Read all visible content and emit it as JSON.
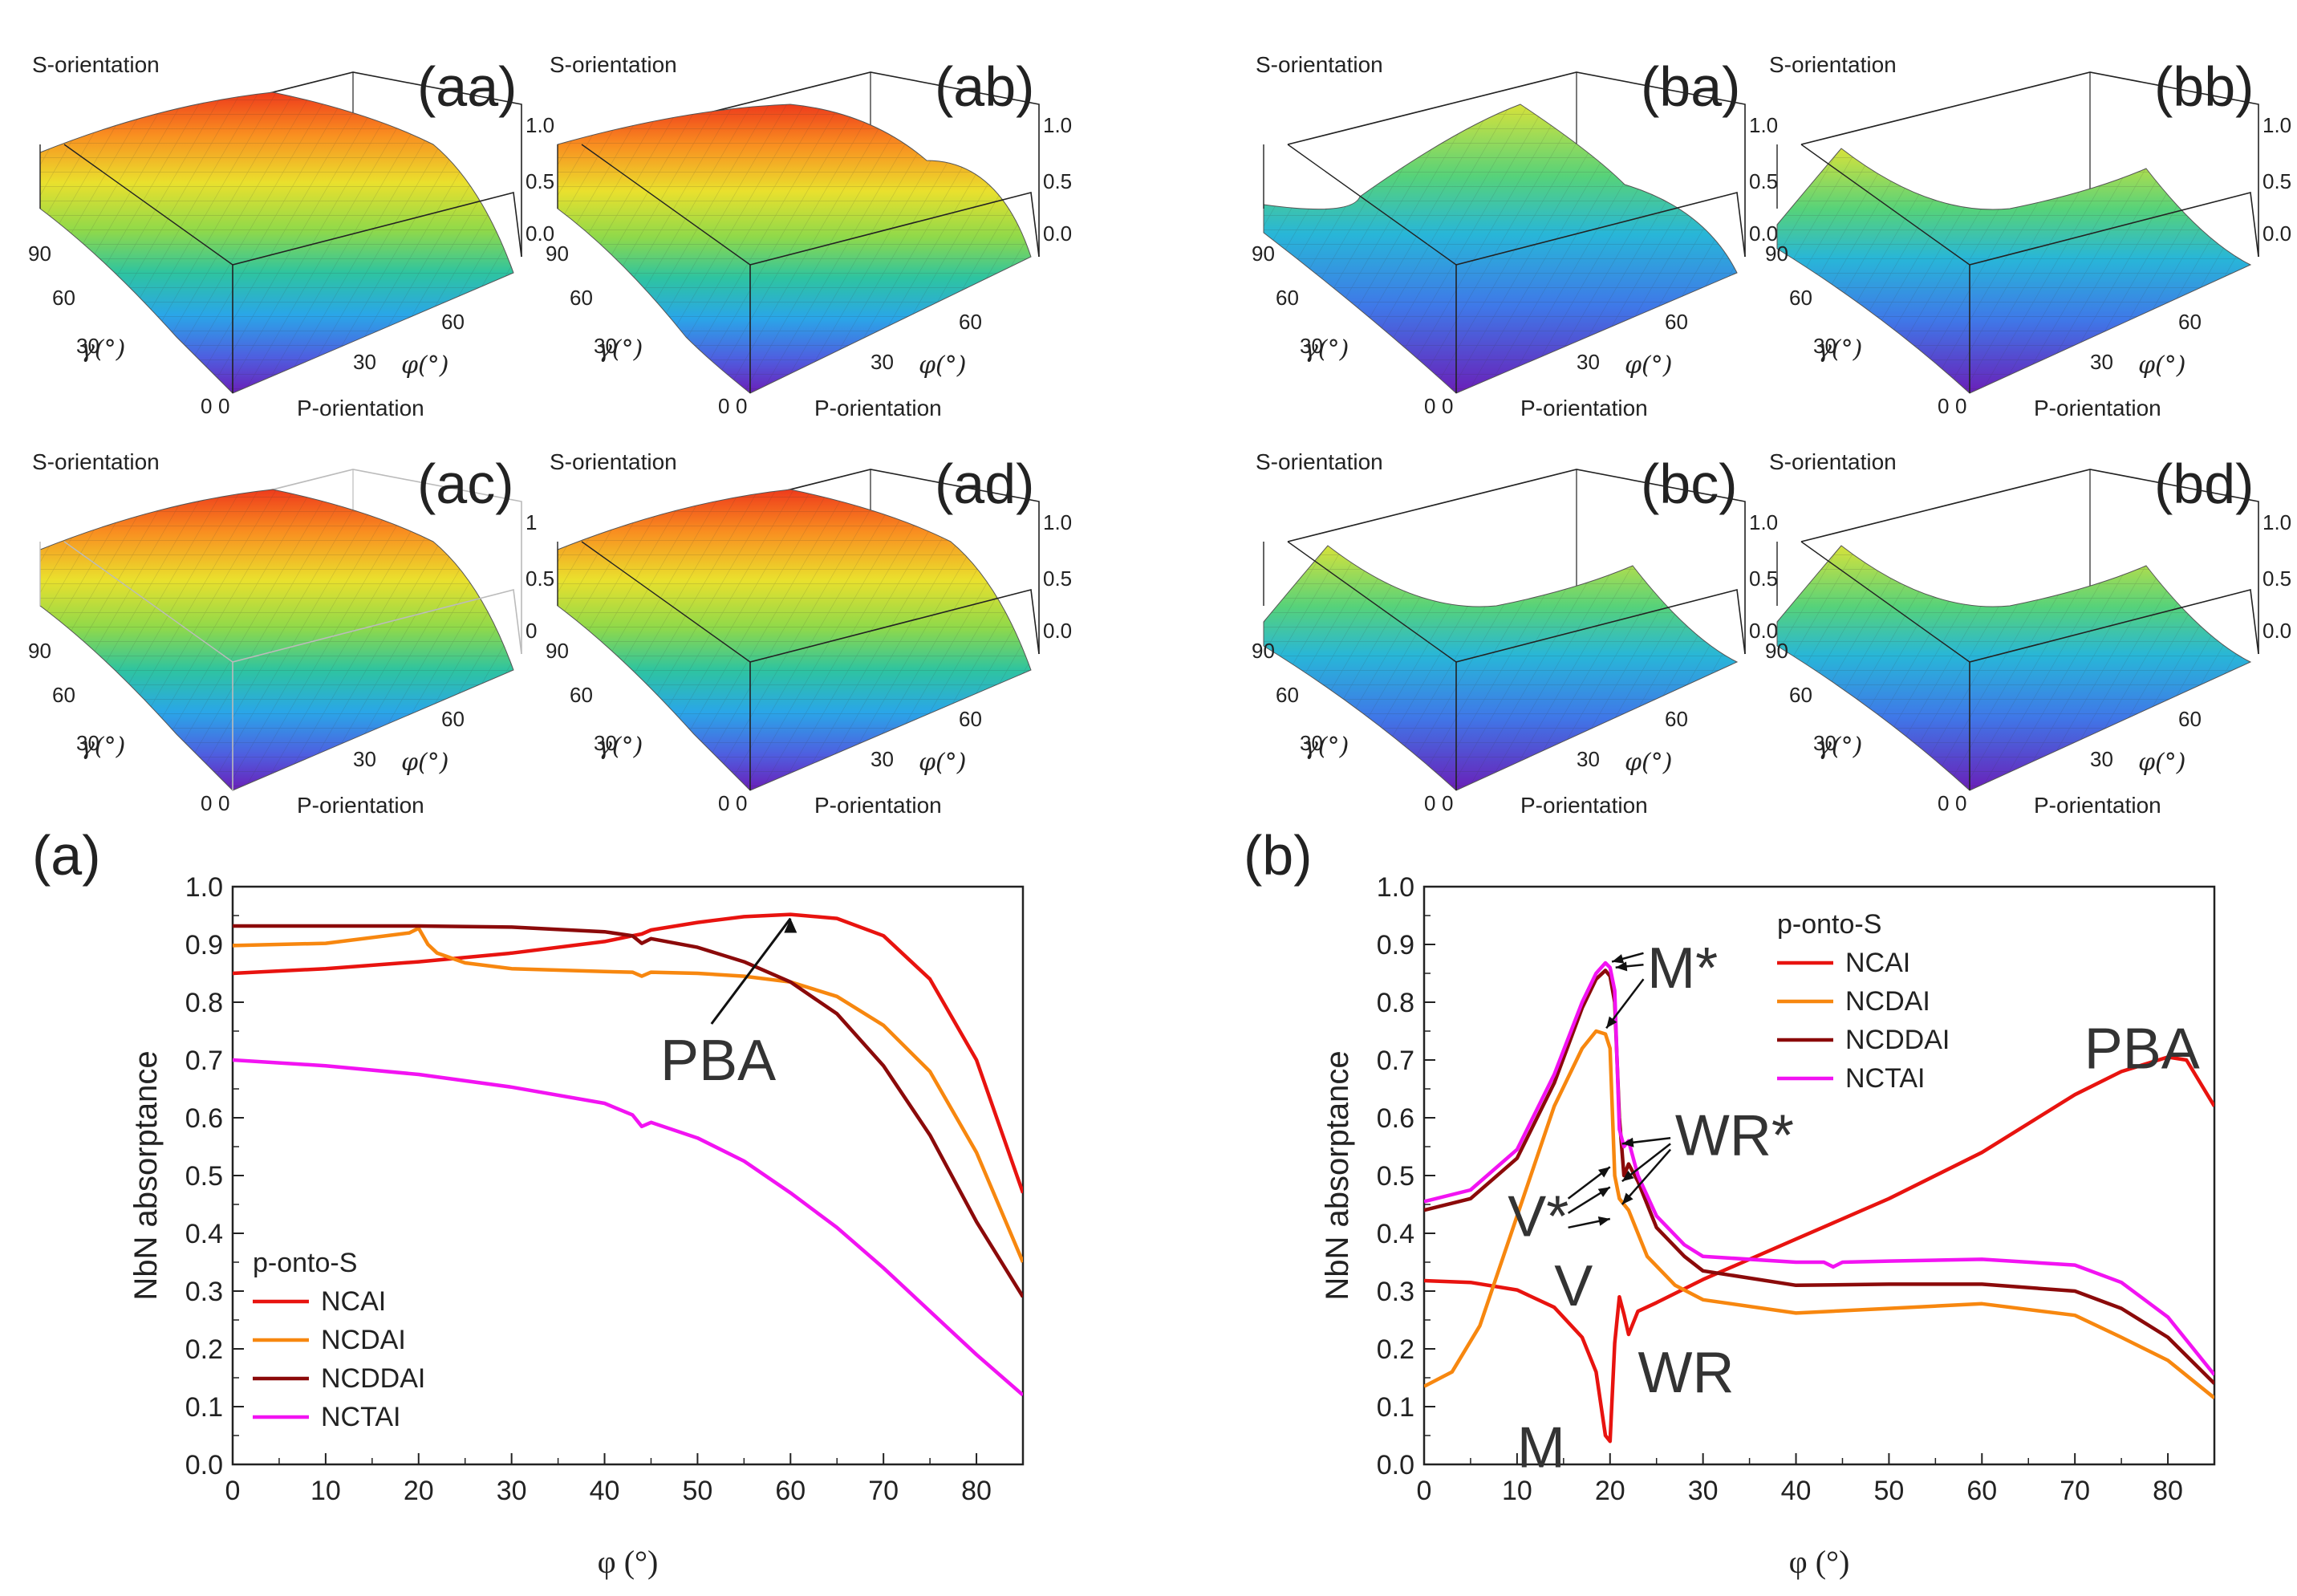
{
  "panels3d": [
    {
      "label": "(aa)",
      "kind": "smooth",
      "box": "dark",
      "ticks_z": [
        "1.0",
        "0.5",
        "0.0"
      ]
    },
    {
      "label": "(ab)",
      "kind": "bump",
      "box": "dark",
      "ticks_z": [
        "1.0",
        "0.5",
        "0.0"
      ]
    },
    {
      "label": "(ba)",
      "kind": "valley",
      "box": "dark",
      "ticks_z": [
        "1.0",
        "0.5",
        "0.0"
      ]
    },
    {
      "label": "(bb)",
      "kind": "ridge",
      "box": "dark",
      "ticks_z": [
        "1.0",
        "0.5",
        "0.0"
      ]
    },
    {
      "label": "(ac)",
      "kind": "smooth",
      "box": "light",
      "ticks_z": [
        "1",
        "0.5",
        "0"
      ]
    },
    {
      "label": "(ad)",
      "kind": "smooth",
      "box": "dark",
      "ticks_z": [
        "1.0",
        "0.5",
        "0.0"
      ]
    },
    {
      "label": "(bc)",
      "kind": "ridge",
      "box": "dark",
      "ticks_z": [
        "1.0",
        "0.5",
        "0.0"
      ]
    },
    {
      "label": "(bd)",
      "kind": "ridge",
      "box": "dark",
      "ticks_z": [
        "1.0",
        "0.5",
        "0.0"
      ]
    }
  ],
  "axes3d": {
    "s_orientation": "S-orientation",
    "p_orientation": "P-orientation",
    "gamma_label": "γ(°)",
    "phi_label": "φ(°)",
    "gamma_ticks": [
      "90",
      "60",
      "30",
      "0"
    ],
    "phi_ticks": [
      "0",
      "30",
      "60"
    ]
  },
  "chart_data": [
    {
      "type": "line",
      "panel_label": "(a)",
      "xlabel": "φ (°)",
      "ylabel": "NbN absorptance",
      "xlim": [
        0,
        85
      ],
      "ylim": [
        0,
        1.0
      ],
      "xticks": [
        0,
        10,
        20,
        30,
        40,
        50,
        60,
        70,
        80
      ],
      "yticks": [
        0.0,
        0.1,
        0.2,
        0.3,
        0.4,
        0.5,
        0.6,
        0.7,
        0.8,
        0.9,
        1.0
      ],
      "legend_title": "p-onto-S",
      "series": [
        {
          "name": "NCAI",
          "color": "#e8130f",
          "x": [
            0,
            10,
            20,
            30,
            40,
            43,
            44,
            45,
            50,
            55,
            60,
            65,
            70,
            75,
            80,
            85
          ],
          "y": [
            0.85,
            0.858,
            0.87,
            0.885,
            0.905,
            0.915,
            0.918,
            0.925,
            0.938,
            0.948,
            0.952,
            0.945,
            0.915,
            0.84,
            0.7,
            0.47
          ]
        },
        {
          "name": "NCDAI",
          "color": "#f7870f",
          "x": [
            0,
            10,
            19,
            20,
            21,
            22,
            25,
            30,
            40,
            43,
            44,
            45,
            50,
            55,
            60,
            65,
            70,
            75,
            80,
            85
          ],
          "y": [
            0.898,
            0.902,
            0.92,
            0.928,
            0.9,
            0.885,
            0.868,
            0.858,
            0.853,
            0.852,
            0.845,
            0.852,
            0.85,
            0.845,
            0.835,
            0.81,
            0.76,
            0.68,
            0.54,
            0.35
          ]
        },
        {
          "name": "NCDDAI",
          "color": "#8b0a0a",
          "x": [
            0,
            10,
            20,
            30,
            40,
            43,
            44,
            45,
            50,
            55,
            60,
            65,
            70,
            75,
            80,
            85
          ],
          "y": [
            0.932,
            0.932,
            0.932,
            0.93,
            0.922,
            0.915,
            0.902,
            0.91,
            0.895,
            0.87,
            0.835,
            0.78,
            0.69,
            0.57,
            0.42,
            0.29
          ]
        },
        {
          "name": "NCTAI",
          "color": "#f213f2",
          "x": [
            0,
            10,
            20,
            30,
            40,
            43,
            44,
            45,
            50,
            55,
            60,
            65,
            70,
            75,
            80,
            85
          ],
          "y": [
            0.7,
            0.69,
            0.675,
            0.653,
            0.625,
            0.605,
            0.585,
            0.592,
            0.565,
            0.525,
            0.47,
            0.41,
            0.34,
            0.265,
            0.19,
            0.12
          ]
        }
      ],
      "annotations": [
        {
          "text": "PBA",
          "x": 46,
          "y": 0.7,
          "arrow_to": [
            60,
            0.952
          ]
        }
      ]
    },
    {
      "type": "line",
      "panel_label": "(b)",
      "xlabel": "φ (°)",
      "ylabel": "NbN absorptance",
      "xlim": [
        0,
        85
      ],
      "ylim": [
        0,
        1.0
      ],
      "xticks": [
        0,
        10,
        20,
        30,
        40,
        50,
        60,
        70,
        80
      ],
      "yticks": [
        0.0,
        0.1,
        0.2,
        0.3,
        0.4,
        0.5,
        0.6,
        0.7,
        0.8,
        0.9,
        1.0
      ],
      "legend_title": "p-onto-S",
      "series": [
        {
          "name": "NCAI",
          "color": "#e8130f",
          "x": [
            0,
            5,
            10,
            14,
            17,
            18.5,
            19.5,
            20,
            20.5,
            21,
            21.5,
            22,
            23,
            25,
            30,
            40,
            50,
            60,
            70,
            75,
            80,
            82,
            85
          ],
          "y": [
            0.318,
            0.315,
            0.302,
            0.272,
            0.22,
            0.16,
            0.05,
            0.04,
            0.21,
            0.29,
            0.26,
            0.225,
            0.265,
            0.28,
            0.32,
            0.39,
            0.46,
            0.54,
            0.64,
            0.68,
            0.705,
            0.7,
            0.62
          ]
        },
        {
          "name": "NCDAI",
          "color": "#f7870f",
          "x": [
            0,
            3,
            6,
            10,
            14,
            17,
            18.5,
            19.5,
            20,
            20.5,
            21,
            21.5,
            22,
            24,
            27,
            30,
            40,
            50,
            60,
            70,
            75,
            80,
            85
          ],
          "y": [
            0.135,
            0.16,
            0.24,
            0.43,
            0.62,
            0.72,
            0.75,
            0.745,
            0.72,
            0.5,
            0.46,
            0.45,
            0.44,
            0.36,
            0.31,
            0.285,
            0.262,
            0.27,
            0.278,
            0.258,
            0.22,
            0.18,
            0.115
          ]
        },
        {
          "name": "NCDDAI",
          "color": "#8b0a0a",
          "x": [
            0,
            5,
            10,
            14,
            17,
            18.5,
            19.5,
            20,
            20.5,
            21,
            21.5,
            22,
            23,
            25,
            28,
            30,
            40,
            50,
            60,
            70,
            75,
            80,
            85
          ],
          "y": [
            0.44,
            0.46,
            0.53,
            0.66,
            0.79,
            0.84,
            0.855,
            0.845,
            0.8,
            0.6,
            0.5,
            0.52,
            0.49,
            0.41,
            0.36,
            0.335,
            0.31,
            0.312,
            0.312,
            0.3,
            0.27,
            0.22,
            0.14
          ]
        },
        {
          "name": "NCTAI",
          "color": "#f213f2",
          "x": [
            0,
            5,
            10,
            14,
            17,
            18.5,
            19.5,
            20,
            20.5,
            21,
            21.5,
            22,
            23,
            25,
            28,
            30,
            40,
            43,
            44,
            45,
            50,
            60,
            70,
            75,
            80,
            85
          ],
          "y": [
            0.455,
            0.475,
            0.545,
            0.675,
            0.8,
            0.85,
            0.868,
            0.86,
            0.82,
            0.58,
            0.55,
            0.56,
            0.5,
            0.43,
            0.38,
            0.36,
            0.35,
            0.35,
            0.342,
            0.35,
            0.352,
            0.355,
            0.345,
            0.315,
            0.255,
            0.155
          ]
        }
      ],
      "annotations": [
        {
          "text": "M*",
          "x": 24,
          "y": 0.86
        },
        {
          "text": "WR*",
          "x": 27,
          "y": 0.57
        },
        {
          "text": "V*",
          "x": 9,
          "y": 0.43
        },
        {
          "text": "V",
          "x": 14,
          "y": 0.31
        },
        {
          "text": "WR",
          "x": 23,
          "y": 0.16
        },
        {
          "text": "M",
          "x": 10,
          "y": 0.03
        },
        {
          "text": "PBA",
          "x": 71,
          "y": 0.72
        }
      ]
    }
  ],
  "panel_labels": {
    "a": "(a)",
    "b": "(b)"
  },
  "colors": {
    "NCAI": "#e8130f",
    "NCDAI": "#f7870f",
    "NCDDAI": "#8b0a0a",
    "NCTAI": "#f213f2"
  }
}
